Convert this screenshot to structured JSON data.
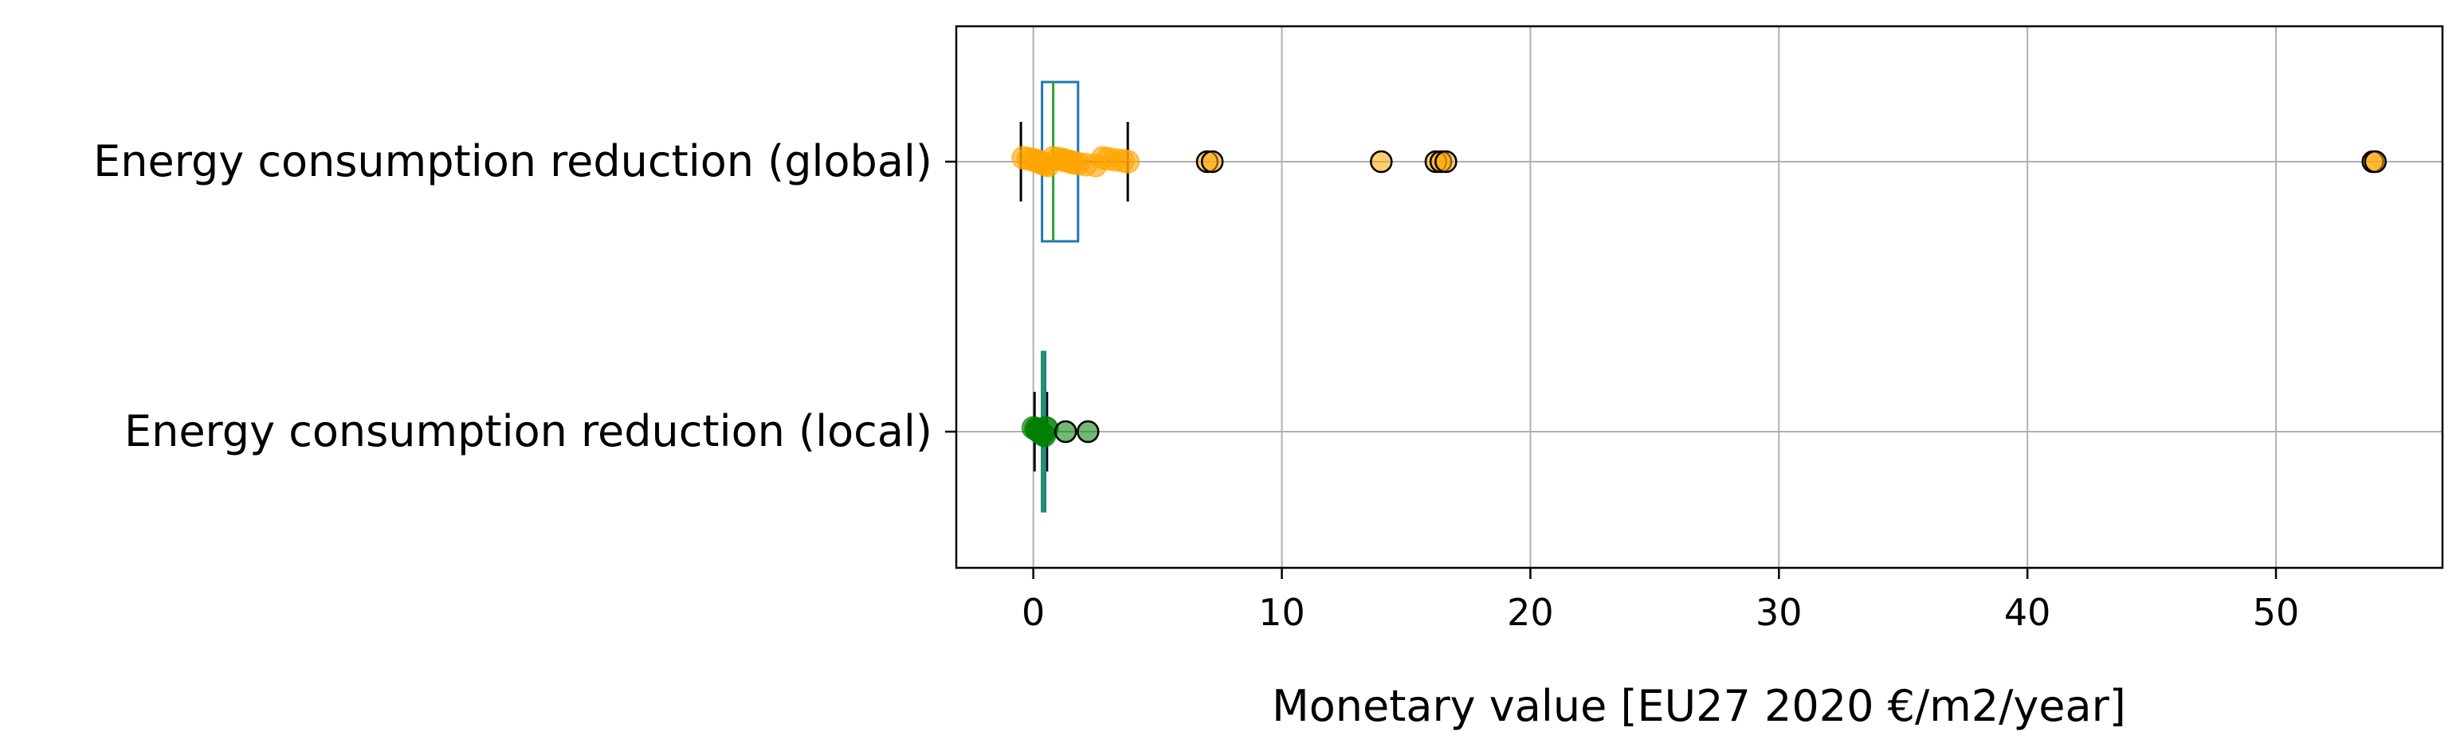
{
  "chart_data": {
    "type": "box",
    "orientation": "horizontal",
    "xlabel": "Monetary value [EU27 2020 €/m2/year]",
    "xlim": [
      -3.1,
      56.7
    ],
    "xticks": [
      0,
      10,
      20,
      30,
      40,
      50
    ],
    "grid": true,
    "categories": [
      {
        "label": "Energy consumption reduction (global)",
        "color": "#FFA500",
        "box_color": "#1f77b4",
        "median_color": "#2ca02c",
        "box": {
          "whisker_low": -0.5,
          "q1": 0.35,
          "median": 0.8,
          "q3": 1.8,
          "whisker_high": 3.8
        },
        "points": [
          -0.4,
          -0.2,
          0.0,
          0.1,
          0.2,
          0.3,
          0.4,
          0.5,
          0.6,
          0.8,
          1.0,
          1.2,
          1.3,
          1.5,
          1.6,
          1.8,
          2.1,
          2.5,
          2.8,
          3.0,
          3.3,
          3.6,
          3.8
        ],
        "outliers": [
          7.0,
          7.2,
          14.0,
          16.2,
          16.4,
          16.6,
          53.9,
          54.0
        ]
      },
      {
        "label": "Energy consumption reduction (local)",
        "color": "#008000",
        "box_color": "#1f77b4",
        "median_color": "#2ca02c",
        "box": {
          "whisker_low": 0.05,
          "q1": 0.35,
          "median": 0.4,
          "q3": 0.45,
          "whisker_high": 0.55
        },
        "points": [
          0.0,
          0.1,
          0.15,
          0.2,
          0.25,
          0.3,
          0.35,
          0.4,
          0.45,
          0.5,
          0.55
        ],
        "outliers": [
          1.3,
          2.2
        ]
      }
    ]
  }
}
